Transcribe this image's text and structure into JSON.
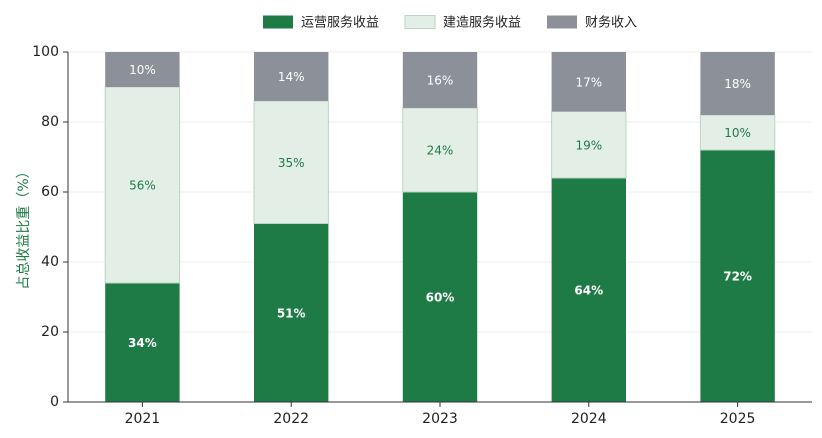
{
  "chart_data": {
    "type": "bar",
    "stacked": true,
    "title": "",
    "xlabel": "",
    "ylabel": "占总收益比重（%）",
    "ylim": [
      0,
      100
    ],
    "yticks": [
      0,
      20,
      40,
      60,
      80,
      100
    ],
    "categories": [
      "2021",
      "2022",
      "2023",
      "2024",
      "2025"
    ],
    "series": [
      {
        "name": "运营服务收益",
        "values": [
          34,
          51,
          60,
          64,
          72
        ],
        "labels": [
          "34%",
          "51%",
          "60%",
          "64%",
          "72%"
        ],
        "color": "#1e7b46",
        "label_color": "#ffffff",
        "label_bold": true
      },
      {
        "name": "建造服务收益",
        "values": [
          56,
          35,
          24,
          19,
          10
        ],
        "labels": [
          "56%",
          "35%",
          "24%",
          "19%",
          "10%"
        ],
        "color": "#e3efe6",
        "label_color": "#1e7b46",
        "label_bold": false
      },
      {
        "name": "财务收入",
        "values": [
          10,
          14,
          16,
          17,
          18
        ],
        "labels": [
          "10%",
          "14%",
          "16%",
          "17%",
          "18%"
        ],
        "color": "#8c9098",
        "label_color": "#ffffff",
        "label_bold": false
      }
    ],
    "grid": true,
    "legend_position": "top-center"
  }
}
